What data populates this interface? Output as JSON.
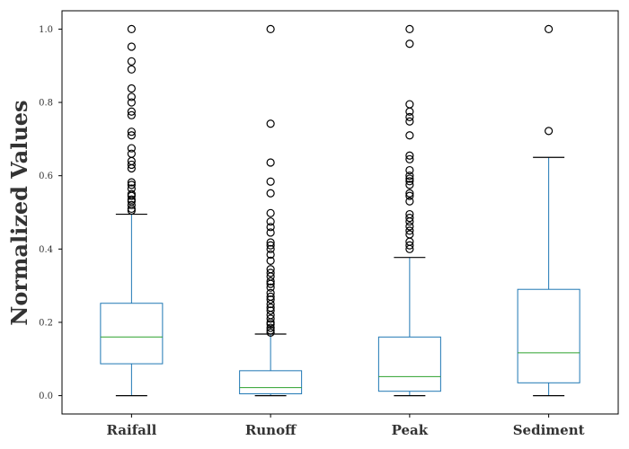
{
  "chart_data": {
    "type": "box",
    "ylabel": "Normalized Values",
    "xlabel": "",
    "title": "",
    "ylim": [
      -0.05,
      1.05
    ],
    "yticks": [
      0.0,
      0.2,
      0.4,
      0.6,
      0.8,
      1.0
    ],
    "ytick_labels": [
      "0.0",
      "0.2",
      "0.4",
      "0.6",
      "0.8",
      "1.0"
    ],
    "grid": false,
    "colors": {
      "box": "#1f77b4",
      "median": "#2ca02c",
      "whisker_cap": "#000000",
      "outlier": "#000000"
    },
    "series": [
      {
        "name": "Raifall",
        "whisker_low": 0.0,
        "q1": 0.087,
        "median": 0.16,
        "q3": 0.252,
        "whisker_high": 0.495,
        "outliers": [
          1.0,
          0.952,
          0.912,
          0.89,
          0.838,
          0.815,
          0.8,
          0.775,
          0.765,
          0.72,
          0.71,
          0.675,
          0.66,
          0.64,
          0.63,
          0.62,
          0.582,
          0.575,
          0.565,
          0.55,
          0.545,
          0.535,
          0.53,
          0.52,
          0.51,
          0.505
        ]
      },
      {
        "name": "Runoff",
        "whisker_low": 0.0,
        "q1": 0.005,
        "median": 0.022,
        "q3": 0.068,
        "whisker_high": 0.168,
        "outliers": [
          1.0,
          0.742,
          0.636,
          0.584,
          0.552,
          0.498,
          0.475,
          0.46,
          0.445,
          0.418,
          0.41,
          0.4,
          0.385,
          0.368,
          0.345,
          0.335,
          0.325,
          0.312,
          0.305,
          0.295,
          0.28,
          0.27,
          0.262,
          0.25,
          0.24,
          0.232,
          0.22,
          0.21,
          0.2,
          0.195,
          0.185,
          0.178,
          0.172
        ]
      },
      {
        "name": "Peak",
        "whisker_low": 0.0,
        "q1": 0.012,
        "median": 0.052,
        "q3": 0.16,
        "whisker_high": 0.377,
        "outliers": [
          1.0,
          0.96,
          0.795,
          0.775,
          0.76,
          0.748,
          0.71,
          0.655,
          0.645,
          0.615,
          0.6,
          0.592,
          0.585,
          0.575,
          0.552,
          0.545,
          0.53,
          0.495,
          0.485,
          0.475,
          0.462,
          0.45,
          0.44,
          0.42,
          0.41,
          0.4
        ]
      },
      {
        "name": "Sediment",
        "whisker_low": 0.0,
        "q1": 0.035,
        "median": 0.117,
        "q3": 0.29,
        "whisker_high": 0.65,
        "outliers": [
          1.0,
          0.722
        ]
      }
    ]
  }
}
